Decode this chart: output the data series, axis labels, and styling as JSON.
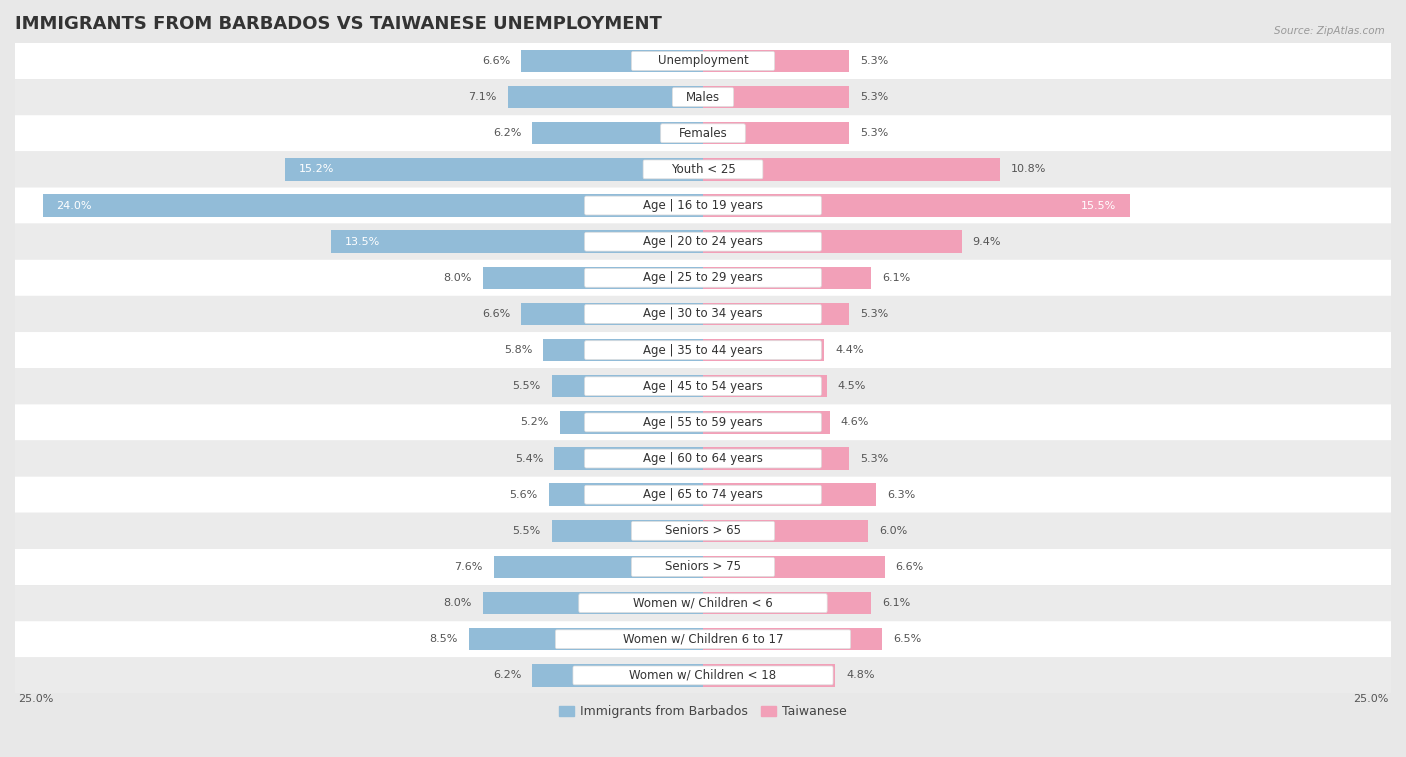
{
  "title": "IMMIGRANTS FROM BARBADOS VS TAIWANESE UNEMPLOYMENT",
  "source": "Source: ZipAtlas.com",
  "categories": [
    "Unemployment",
    "Males",
    "Females",
    "Youth < 25",
    "Age | 16 to 19 years",
    "Age | 20 to 24 years",
    "Age | 25 to 29 years",
    "Age | 30 to 34 years",
    "Age | 35 to 44 years",
    "Age | 45 to 54 years",
    "Age | 55 to 59 years",
    "Age | 60 to 64 years",
    "Age | 65 to 74 years",
    "Seniors > 65",
    "Seniors > 75",
    "Women w/ Children < 6",
    "Women w/ Children 6 to 17",
    "Women w/ Children < 18"
  ],
  "barbados_values": [
    6.6,
    7.1,
    6.2,
    15.2,
    24.0,
    13.5,
    8.0,
    6.6,
    5.8,
    5.5,
    5.2,
    5.4,
    5.6,
    5.5,
    7.6,
    8.0,
    8.5,
    6.2
  ],
  "taiwanese_values": [
    5.3,
    5.3,
    5.3,
    10.8,
    15.5,
    9.4,
    6.1,
    5.3,
    4.4,
    4.5,
    4.6,
    5.3,
    6.3,
    6.0,
    6.6,
    6.1,
    6.5,
    4.8
  ],
  "barbados_color": "#92bcd8",
  "taiwanese_color": "#f2a0b8",
  "axis_limit": 25.0,
  "background_color": "#e8e8e8",
  "row_color_even": "#ffffff",
  "row_color_odd": "#ebebeb",
  "bar_height": 0.62,
  "title_fontsize": 13,
  "label_fontsize": 8.5,
  "value_fontsize": 8.0,
  "legend_fontsize": 9,
  "label_bg_color": "#ffffff",
  "white_text_threshold": 11.0
}
